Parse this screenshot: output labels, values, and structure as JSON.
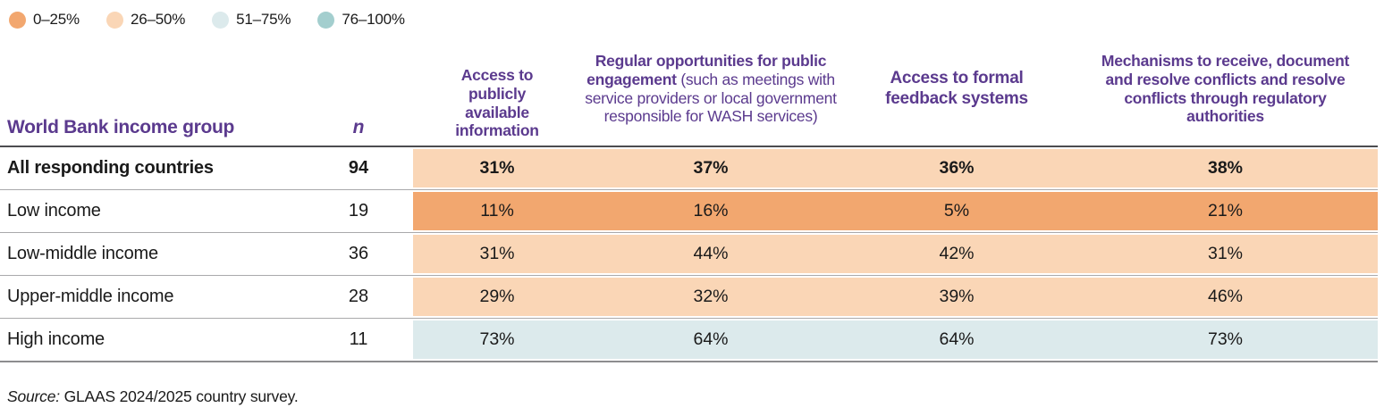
{
  "legend": {
    "items": [
      {
        "label": "0–25%",
        "color": "#F2A76F"
      },
      {
        "label": "26–50%",
        "color": "#FAD6B6"
      },
      {
        "label": "51–75%",
        "color": "#DCEAEC"
      },
      {
        "label": "76–100%",
        "color": "#A3CECE"
      }
    ]
  },
  "header": {
    "row_group_label": "World Bank income group",
    "n_label": "n",
    "columns": [
      {
        "bold": "Access to publicly available information",
        "note": ""
      },
      {
        "bold": "Regular opportunities for public engagement",
        "note": " (such as meetings with service providers or local government responsible for WASH services)"
      },
      {
        "bold": "Access to formal feedback systems",
        "note": ""
      },
      {
        "bold": "Mechanisms to receive, document and resolve conflicts and resolve conflicts through regulatory authorities",
        "note": ""
      }
    ]
  },
  "rows": [
    {
      "group": "All responding countries",
      "n": "94",
      "values": [
        "31%",
        "37%",
        "36%",
        "38%"
      ],
      "emphasis": true
    },
    {
      "group": "Low income",
      "n": "19",
      "values": [
        "11%",
        "16%",
        "5%",
        "21%"
      ],
      "emphasis": false
    },
    {
      "group": "Low-middle income",
      "n": "36",
      "values": [
        "31%",
        "44%",
        "42%",
        "31%"
      ],
      "emphasis": false
    },
    {
      "group": "Upper-middle income",
      "n": "28",
      "values": [
        "29%",
        "32%",
        "39%",
        "46%"
      ],
      "emphasis": false
    },
    {
      "group": "High income",
      "n": "11",
      "values": [
        "73%",
        "64%",
        "64%",
        "73%"
      ],
      "emphasis": false
    }
  ],
  "source": {
    "prefix": "Source:",
    "text": " GLAAS 2024/2025 country survey."
  },
  "chart_data": {
    "type": "heatmap",
    "title": "",
    "row_dimension_label": "World Bank income group",
    "categories": [
      "Access to publicly available information",
      "Regular opportunities for public engagement (such as meetings with service providers or local government responsible for WASH services)",
      "Access to formal feedback systems",
      "Mechanisms to receive, document and resolve conflicts and resolve conflicts through regulatory authorities"
    ],
    "rows": [
      "All responding countries",
      "Low income",
      "Low-middle income",
      "Upper-middle income",
      "High income"
    ],
    "n": [
      94,
      19,
      36,
      28,
      11
    ],
    "values_pct": [
      [
        31,
        37,
        36,
        38
      ],
      [
        11,
        16,
        5,
        21
      ],
      [
        31,
        44,
        42,
        31
      ],
      [
        29,
        32,
        39,
        46
      ],
      [
        73,
        64,
        64,
        73
      ]
    ],
    "legend_buckets": [
      "0–25%",
      "26–50%",
      "51–75%",
      "76–100%"
    ],
    "legend_colors": [
      "#F2A76F",
      "#FAD6B6",
      "#DCEAEC",
      "#A3CECE"
    ],
    "legend_position": "top-left",
    "source": "Source: GLAAS 2024/2025 country survey."
  }
}
